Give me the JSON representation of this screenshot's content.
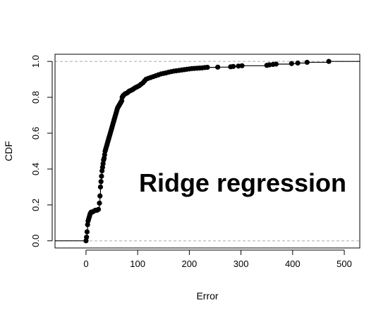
{
  "chart_data": {
    "type": "line",
    "title": "",
    "xlabel": "Error",
    "ylabel": "CDF",
    "xlim": [
      -60,
      530
    ],
    "ylim": [
      -0.04,
      1.04
    ],
    "x_ticks": [
      0,
      100,
      200,
      300,
      400,
      500
    ],
    "y_ticks": [
      0.0,
      0.2,
      0.4,
      0.6,
      0.8,
      1.0
    ],
    "x_tick_labels": [
      "0",
      "100",
      "200",
      "300",
      "400",
      "500"
    ],
    "y_tick_labels": [
      "0.0",
      "0.2",
      "0.4",
      "0.6",
      "0.8",
      "1.0"
    ],
    "reference_lines": [
      0,
      1
    ],
    "annotation": "Ridge regression",
    "grid": false,
    "series": [
      {
        "step": true,
        "x": [
          0,
          1,
          2,
          3,
          4,
          5,
          6,
          7,
          8,
          9,
          10,
          12,
          15,
          18,
          21,
          24,
          26,
          27,
          28,
          29,
          30,
          31,
          32,
          33,
          34,
          35,
          36,
          37,
          38,
          39,
          40,
          41,
          42,
          43,
          44,
          45,
          46,
          47,
          48,
          49,
          50,
          51,
          52,
          53,
          54,
          55,
          56,
          57,
          58,
          59,
          60,
          61,
          62,
          63,
          64,
          65,
          66,
          67,
          68,
          69,
          70,
          71,
          72,
          74,
          76,
          78,
          80,
          82,
          84,
          86,
          88,
          90,
          92,
          95,
          98,
          100,
          103,
          106,
          110,
          113,
          116,
          120,
          125,
          130,
          135,
          140,
          145,
          150,
          155,
          160,
          165,
          170,
          175,
          180,
          185,
          190,
          195,
          200,
          205,
          210,
          215,
          220,
          225,
          230,
          235,
          255,
          280,
          285,
          295,
          302,
          350,
          355,
          362,
          368,
          398,
          410,
          428,
          470
        ],
        "y": [
          0.0,
          0.02,
          0.05,
          0.09,
          0.11,
          0.12,
          0.13,
          0.14,
          0.15,
          0.155,
          0.16,
          0.16,
          0.165,
          0.17,
          0.17,
          0.175,
          0.21,
          0.25,
          0.3,
          0.33,
          0.36,
          0.39,
          0.41,
          0.43,
          0.45,
          0.46,
          0.48,
          0.5,
          0.51,
          0.52,
          0.53,
          0.54,
          0.55,
          0.56,
          0.57,
          0.58,
          0.59,
          0.6,
          0.61,
          0.62,
          0.63,
          0.64,
          0.65,
          0.66,
          0.67,
          0.68,
          0.69,
          0.7,
          0.71,
          0.72,
          0.73,
          0.74,
          0.745,
          0.75,
          0.755,
          0.76,
          0.765,
          0.77,
          0.775,
          0.78,
          0.8,
          0.805,
          0.81,
          0.815,
          0.82,
          0.822,
          0.825,
          0.83,
          0.835,
          0.837,
          0.84,
          0.843,
          0.847,
          0.853,
          0.857,
          0.86,
          0.865,
          0.872,
          0.88,
          0.89,
          0.9,
          0.905,
          0.91,
          0.915,
          0.92,
          0.925,
          0.93,
          0.933,
          0.936,
          0.94,
          0.943,
          0.946,
          0.948,
          0.95,
          0.952,
          0.954,
          0.956,
          0.958,
          0.96,
          0.961,
          0.962,
          0.963,
          0.964,
          0.966,
          0.967,
          0.968,
          0.97,
          0.972,
          0.974,
          0.976,
          0.978,
          0.981,
          0.983,
          0.985,
          0.988,
          0.991,
          0.995,
          1.0
        ]
      }
    ]
  }
}
